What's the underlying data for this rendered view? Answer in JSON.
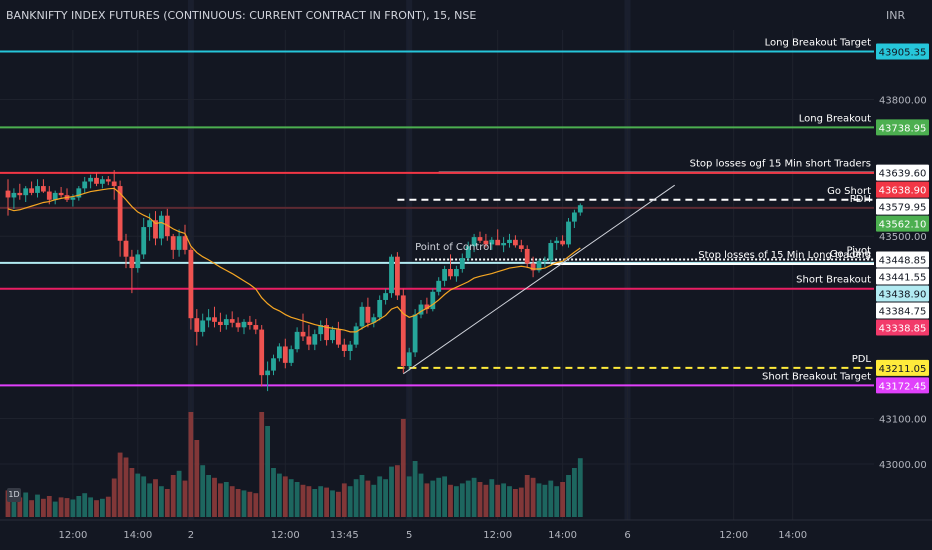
{
  "header": {
    "title": "BANKNIFTY INDEX FUTURES (CONTINUOUS: CURRENT CONTRACT IN FRONT), 15, NSE",
    "currency": "INR",
    "interval_badge": "1D"
  },
  "chart_data": {
    "type": "candlestick",
    "ylim": [
      42940,
      43965
    ],
    "y_ticks": [
      43000.0,
      43100.0,
      43500.0,
      43800.0
    ],
    "y_tick_labels": [
      "43000.00",
      "43100.00",
      "43500.00",
      "43800.00"
    ],
    "x_ticks": [
      "12:00",
      "14:00",
      "2",
      "12:00",
      "13:45",
      "5",
      "12:00",
      "14:00",
      "6",
      "12:00",
      "14:00"
    ],
    "x_tick_bar_index": [
      11,
      22,
      31,
      47,
      57,
      68,
      83,
      94,
      105,
      123,
      133
    ],
    "levels": [
      {
        "name": "long_breakout_target",
        "label": "Long Breakout Target",
        "price": 43905.35,
        "price_label": "43905.35",
        "color": "#26c6da",
        "style": "solid",
        "label_bg": "#26c6da",
        "label_fg": "#131722",
        "x_from_bar": -1
      },
      {
        "name": "long_breakout",
        "label": "Long Breakout",
        "price": 43738.95,
        "price_label": "43738.95",
        "color": "#4caf50",
        "style": "solid",
        "label_bg": "#4caf50",
        "label_fg": "#ffffff",
        "x_from_bar": -1
      },
      {
        "name": "stop_losses_short",
        "label": "Stop losses ogf 15 Min short Traders",
        "price": 43639.6,
        "price_label": "43639.60",
        "color": "#ffffff",
        "style": "solid",
        "label_bg": "#ffffff",
        "label_fg": "#131722",
        "x_from_bar": 73
      },
      {
        "name": "red_level",
        "label": "",
        "price": 43638.9,
        "price_label": "43638.90",
        "color": "#f23645",
        "style": "solid",
        "label_bg": "#f23645",
        "label_fg": "#ffffff",
        "x_from_bar": -1
      },
      {
        "name": "go_short",
        "label": "Go Short",
        "price": 43579.95,
        "price_label": "43579.95",
        "color": "#ffffff",
        "style": "dashed",
        "label_bg": "#ffffff",
        "label_fg": "#131722",
        "x_from_bar": 66
      },
      {
        "name": "pdh",
        "label": "PDH",
        "price": 43562.1,
        "price_label": "43562.10",
        "color": "#5d2a32",
        "style": "solid",
        "label_bg": "#4caf50",
        "label_fg": "#ffffff",
        "x_from_bar": -1
      },
      {
        "name": "pivot",
        "label": "Pivot",
        "price": 43448.85,
        "price_label": "43448.85",
        "color": "#ffffff",
        "style": "dotted",
        "label_bg": "#ffffff",
        "label_fg": "#131722",
        "x_from_bar": 69
      },
      {
        "name": "go_long",
        "label": "Go Long",
        "price": 43441.55,
        "price_label": "43441.55",
        "color": "#b2ebf2",
        "style": "solid",
        "label_bg": "#ffffff",
        "label_fg": "#131722",
        "x_from_bar": -1
      },
      {
        "name": "stop_losses_long",
        "label": "Stop losses of 15 Min Long traders",
        "price": 43438.9,
        "price_label": "43438.90",
        "color": "#ffffff",
        "style": "solid",
        "label_bg": "#b2ebf2",
        "label_fg": "#131722",
        "x_from_bar": 92
      },
      {
        "name": "short_breakout",
        "label": "Short Breakout",
        "price": 43384.75,
        "price_label": "43384.75",
        "color": "#e91e63",
        "style": "solid",
        "label_bg": "#ffffff",
        "label_fg": "#131722",
        "x_from_bar": -1
      },
      {
        "name": "pink_level",
        "label": "",
        "price": 43338.85,
        "price_label": "43338.85",
        "color": "#e91e63",
        "style": "none",
        "label_bg": "#f23a6a",
        "label_fg": "#ffffff",
        "x_from_bar": -1
      },
      {
        "name": "pdl",
        "label": "PDL",
        "price": 43211.05,
        "price_label": "43211.05",
        "color": "#ffeb3b",
        "style": "dashed",
        "label_bg": "#ffeb3b",
        "label_fg": "#131722",
        "x_from_bar": 66
      },
      {
        "name": "short_breakout_target",
        "label": "Short Breakout Target",
        "price": 43172.45,
        "price_label": "43172.45",
        "color": "#e040fb",
        "style": "solid",
        "label_bg": "#e040fb",
        "label_fg": "#ffffff",
        "x_from_bar": -1
      }
    ],
    "annotations": [
      {
        "text": "Point of Control",
        "x_bar": 69,
        "price": 43470
      }
    ],
    "trendline": {
      "from": {
        "bar": 67,
        "price": 43198
      },
      "to": {
        "bar": 113,
        "price": 43612
      },
      "color": "#d1d4dc"
    },
    "candles": [
      [
        43600,
        43625,
        43545,
        43585
      ],
      [
        43585,
        43605,
        43560,
        43595
      ],
      [
        43595,
        43615,
        43580,
        43590
      ],
      [
        43590,
        43610,
        43575,
        43605
      ],
      [
        43605,
        43620,
        43590,
        43595
      ],
      [
        43595,
        43625,
        43585,
        43610
      ],
      [
        43610,
        43625,
        43595,
        43598
      ],
      [
        43598,
        43610,
        43570,
        43580
      ],
      [
        43580,
        43600,
        43570,
        43595
      ],
      [
        43595,
        43608,
        43585,
        43590
      ],
      [
        43590,
        43605,
        43575,
        43580
      ],
      [
        43580,
        43592,
        43565,
        43585
      ],
      [
        43585,
        43610,
        43578,
        43605
      ],
      [
        43605,
        43630,
        43595,
        43620
      ],
      [
        43620,
        43635,
        43605,
        43628
      ],
      [
        43628,
        43640,
        43610,
        43615
      ],
      [
        43615,
        43632,
        43605,
        43625
      ],
      [
        43625,
        43632,
        43612,
        43620
      ],
      [
        43620,
        43645,
        43580,
        43610
      ],
      [
        43610,
        43622,
        43455,
        43490
      ],
      [
        43490,
        43505,
        43430,
        43455
      ],
      [
        43455,
        43470,
        43375,
        43430
      ],
      [
        43430,
        43470,
        43420,
        43460
      ],
      [
        43460,
        43540,
        43450,
        43520
      ],
      [
        43520,
        43550,
        43490,
        43535
      ],
      [
        43535,
        43555,
        43480,
        43495
      ],
      [
        43495,
        43555,
        43480,
        43545
      ],
      [
        43545,
        43560,
        43490,
        43500
      ],
      [
        43500,
        43505,
        43450,
        43470
      ],
      [
        43470,
        43515,
        43455,
        43500
      ],
      [
        43500,
        43525,
        43460,
        43470
      ],
      [
        43470,
        43475,
        43295,
        43320
      ],
      [
        43320,
        43340,
        43260,
        43290
      ],
      [
        43290,
        43330,
        43280,
        43315
      ],
      [
        43315,
        43340,
        43300,
        43322
      ],
      [
        43322,
        43345,
        43300,
        43312
      ],
      [
        43312,
        43332,
        43290,
        43305
      ],
      [
        43305,
        43328,
        43295,
        43318
      ],
      [
        43318,
        43335,
        43300,
        43310
      ],
      [
        43310,
        43322,
        43290,
        43300
      ],
      [
        43300,
        43318,
        43285,
        43312
      ],
      [
        43312,
        43325,
        43295,
        43305
      ],
      [
        43305,
        43318,
        43285,
        43295
      ],
      [
        43295,
        43305,
        43170,
        43195
      ],
      [
        43195,
        43225,
        43160,
        43205
      ],
      [
        43205,
        43240,
        43195,
        43232
      ],
      [
        43232,
        43265,
        43225,
        43258
      ],
      [
        43258,
        43275,
        43210,
        43222
      ],
      [
        43222,
        43260,
        43215,
        43252
      ],
      [
        43252,
        43300,
        43245,
        43290
      ],
      [
        43290,
        43330,
        43270,
        43280
      ],
      [
        43280,
        43305,
        43250,
        43262
      ],
      [
        43262,
        43295,
        43250,
        43285
      ],
      [
        43285,
        43315,
        43270,
        43305
      ],
      [
        43305,
        43320,
        43260,
        43272
      ],
      [
        43272,
        43302,
        43265,
        43295
      ],
      [
        43295,
        43312,
        43255,
        43262
      ],
      [
        43262,
        43275,
        43235,
        43248
      ],
      [
        43248,
        43270,
        43228,
        43262
      ],
      [
        43262,
        43310,
        43255,
        43302
      ],
      [
        43302,
        43355,
        43295,
        43345
      ],
      [
        43345,
        43365,
        43300,
        43310
      ],
      [
        43310,
        43330,
        43300,
        43322
      ],
      [
        43322,
        43370,
        43315,
        43360
      ],
      [
        43360,
        43385,
        43350,
        43375
      ],
      [
        43375,
        43460,
        43365,
        43455
      ],
      [
        43455,
        43465,
        43360,
        43370
      ],
      [
        43370,
        43385,
        43200,
        43215
      ],
      [
        43215,
        43255,
        43205,
        43245
      ],
      [
        43245,
        43340,
        43235,
        43328
      ],
      [
        43328,
        43360,
        43320,
        43350
      ],
      [
        43350,
        43365,
        43330,
        43340
      ],
      [
        43340,
        43385,
        43335,
        43378
      ],
      [
        43378,
        43410,
        43370,
        43402
      ],
      [
        43402,
        43435,
        43390,
        43428
      ],
      [
        43428,
        43460,
        43405,
        43412
      ],
      [
        43412,
        43435,
        43400,
        43428
      ],
      [
        43428,
        43462,
        43420,
        43452
      ],
      [
        43452,
        43488,
        43445,
        43478
      ],
      [
        43478,
        43505,
        43465,
        43498
      ],
      [
        43498,
        43510,
        43485,
        43490
      ],
      [
        43490,
        43505,
        43475,
        43482
      ],
      [
        43482,
        43498,
        43470,
        43492
      ],
      [
        43492,
        43515,
        43485,
        43480
      ],
      [
        43480,
        43498,
        43465,
        43485
      ],
      [
        43485,
        43505,
        43475,
        43492
      ],
      [
        43492,
        43502,
        43475,
        43480
      ],
      [
        43480,
        43492,
        43465,
        43472
      ],
      [
        43472,
        43480,
        43430,
        43440
      ],
      [
        43440,
        43455,
        43410,
        43425
      ],
      [
        43425,
        43450,
        43420,
        43445
      ],
      [
        43445,
        43455,
        43432,
        43448
      ],
      [
        43448,
        43492,
        43440,
        43485
      ],
      [
        43485,
        43498,
        43470,
        43490
      ],
      [
        43490,
        43502,
        43478,
        43482
      ],
      [
        43482,
        43540,
        43475,
        43532
      ],
      [
        43532,
        43558,
        43518,
        43552
      ],
      [
        43552,
        43572,
        43545,
        43568
      ]
    ],
    "ema": [
      43560,
      43556,
      43558,
      43562,
      43566,
      43570,
      43574,
      43576,
      43580,
      43583,
      43585,
      43587,
      43590,
      43594,
      43598,
      43600,
      43602,
      43604,
      43605,
      43594,
      43580,
      43565,
      43553,
      43546,
      43540,
      43528,
      43530,
      43524,
      43516,
      43510,
      43506,
      43478,
      43464,
      43455,
      43448,
      43440,
      43432,
      43425,
      43418,
      43410,
      43402,
      43394,
      43384,
      43365,
      43352,
      43342,
      43336,
      43328,
      43322,
      43318,
      43314,
      43310,
      43306,
      43303,
      43300,
      43298,
      43296,
      43294,
      43290,
      43290,
      43298,
      43305,
      43310,
      43318,
      43326,
      43340,
      43345,
      43330,
      43322,
      43326,
      43335,
      43342,
      43350,
      43360,
      43372,
      43382,
      43388,
      43394,
      43400,
      43408,
      43412,
      43415,
      43418,
      43422,
      43426,
      43430,
      43432,
      43434,
      43432,
      43428,
      43428,
      43430,
      43436,
      43442,
      43445,
      43455,
      43465,
      43474
    ],
    "volume": [
      38,
      30,
      28,
      35,
      24,
      32,
      26,
      30,
      22,
      28,
      27,
      25,
      30,
      34,
      28,
      24,
      26,
      29,
      55,
      92,
      85,
      70,
      62,
      58,
      48,
      54,
      44,
      40,
      60,
      66,
      52,
      150,
      110,
      74,
      60,
      56,
      48,
      50,
      44,
      40,
      38,
      36,
      34,
      150,
      130,
      70,
      62,
      58,
      54,
      50,
      46,
      44,
      40,
      44,
      42,
      38,
      36,
      48,
      44,
      54,
      60,
      52,
      46,
      58,
      54,
      72,
      74,
      140,
      58,
      80,
      62,
      48,
      52,
      56,
      58,
      46,
      44,
      48,
      52,
      56,
      50,
      46,
      54,
      46,
      48,
      44,
      40,
      42,
      60,
      56,
      48,
      46,
      52,
      44,
      50,
      60,
      70,
      84
    ],
    "volume_max": 160,
    "up_color": "#26a69a",
    "down_color": "#ef5350",
    "ema_color": "#f5a623"
  }
}
